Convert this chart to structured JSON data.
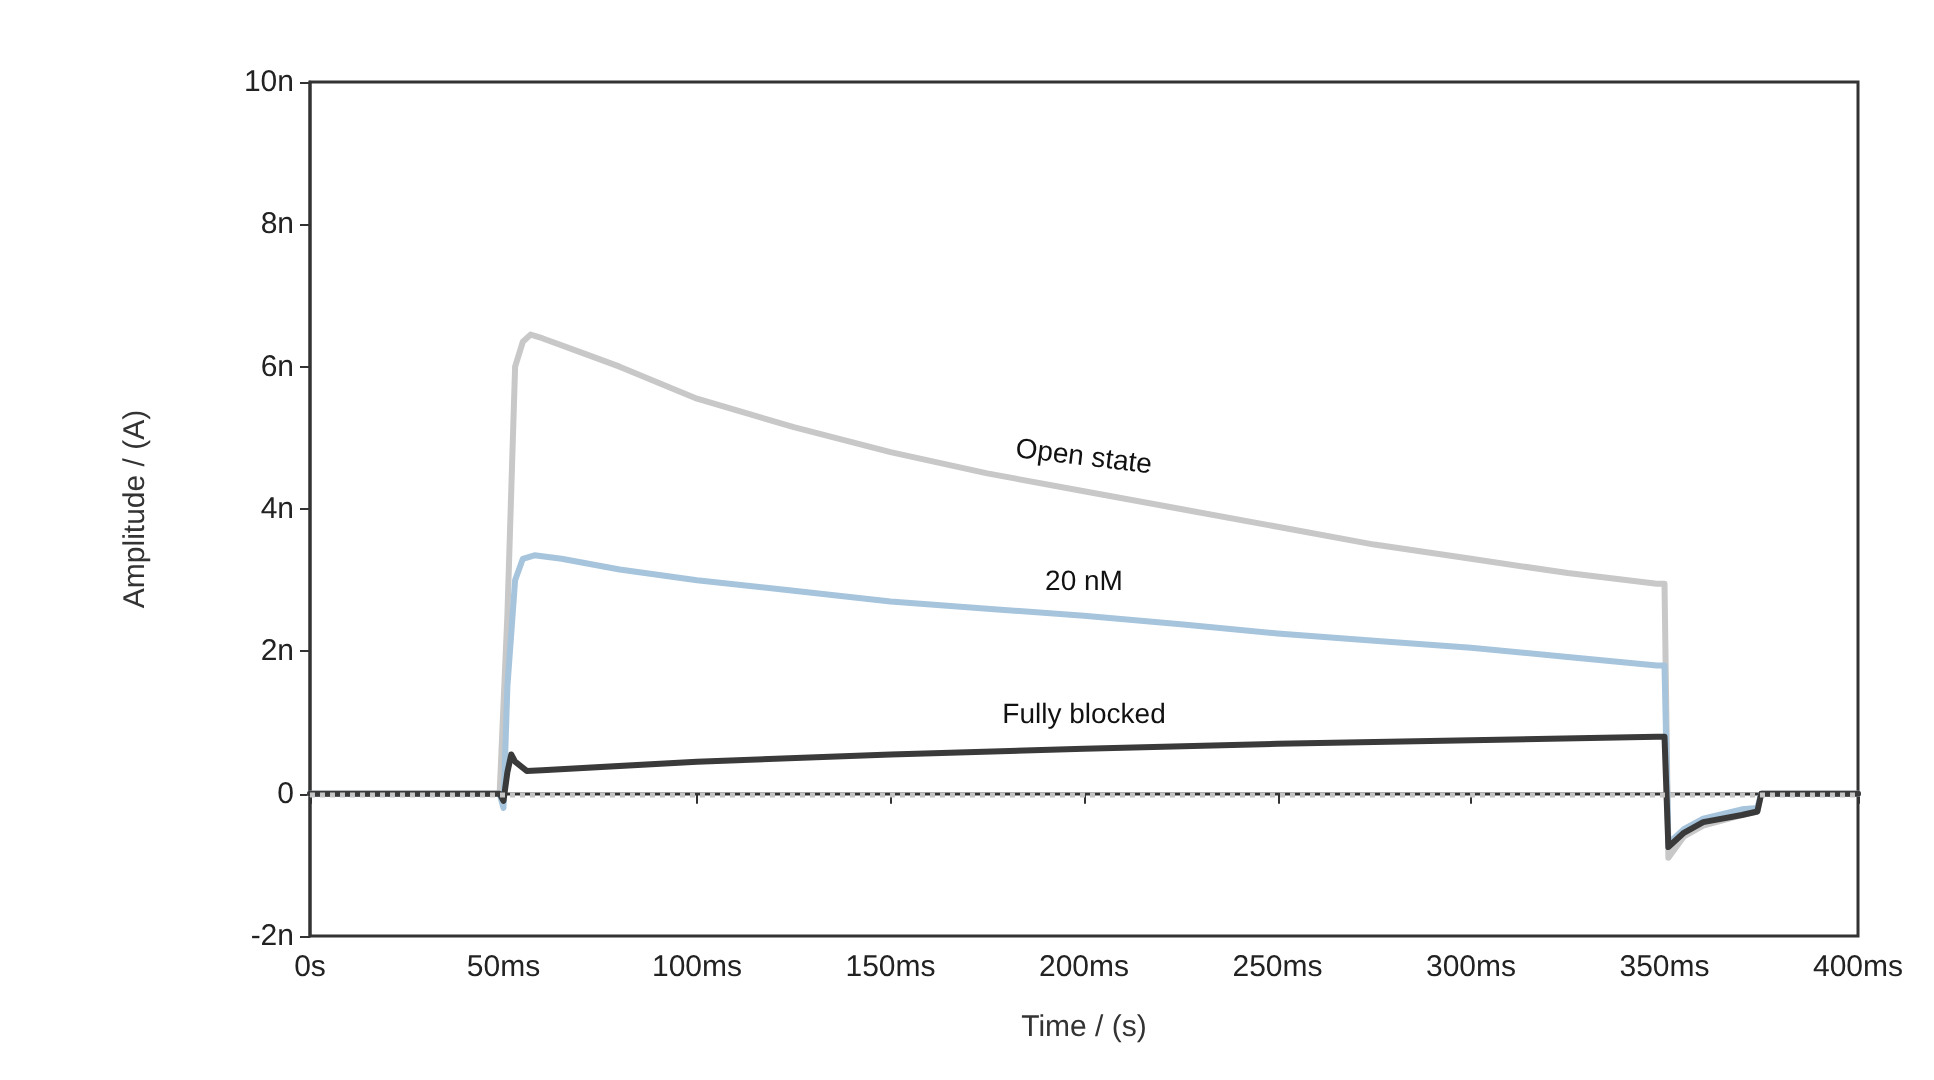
{
  "chart_data": {
    "type": "line",
    "xlabel": "Time / (s)",
    "ylabel": "Amplitude / (A)",
    "xlim": [
      0,
      400
    ],
    "ylim": [
      -2,
      10
    ],
    "xticks": [
      {
        "value": 0,
        "label": "0s"
      },
      {
        "value": 50,
        "label": "50ms"
      },
      {
        "value": 100,
        "label": "100ms"
      },
      {
        "value": 150,
        "label": "150ms"
      },
      {
        "value": 200,
        "label": "200ms"
      },
      {
        "value": 250,
        "label": "250ms"
      },
      {
        "value": 300,
        "label": "300ms"
      },
      {
        "value": 350,
        "label": "350ms"
      },
      {
        "value": 400,
        "label": "400ms"
      }
    ],
    "yticks": [
      {
        "value": -2,
        "label": "-2n"
      },
      {
        "value": 0,
        "label": "0"
      },
      {
        "value": 2,
        "label": "2n"
      },
      {
        "value": 4,
        "label": "4n"
      },
      {
        "value": 6,
        "label": "6n"
      },
      {
        "value": 8,
        "label": "8n"
      },
      {
        "value": 10,
        "label": "10n"
      }
    ],
    "grid": false,
    "legend": false,
    "marker": "none",
    "line_style": "solid",
    "ref_lines": [
      {
        "axis": "y",
        "value": 0,
        "color": "#c4c4c4",
        "line_style": "dotted"
      }
    ],
    "series": [
      {
        "name": "Open state",
        "color": "#c8c8c8",
        "x": [
          0,
          49,
          51,
          53,
          55,
          57,
          60,
          70,
          80,
          100,
          125,
          150,
          175,
          200,
          225,
          250,
          275,
          300,
          325,
          348,
          350,
          351,
          355,
          360,
          370,
          374,
          375,
          400
        ],
        "values": [
          0,
          0,
          2.5,
          6.0,
          6.35,
          6.45,
          6.4,
          6.2,
          6.0,
          5.55,
          5.15,
          4.8,
          4.5,
          4.25,
          4.0,
          3.75,
          3.5,
          3.3,
          3.1,
          2.95,
          2.95,
          -0.9,
          -0.6,
          -0.45,
          -0.3,
          -0.25,
          0,
          0
        ]
      },
      {
        "name": "20 nM",
        "color": "#a6c4dc",
        "x": [
          0,
          49,
          50,
          51,
          53,
          55,
          58,
          65,
          80,
          100,
          125,
          150,
          175,
          200,
          225,
          250,
          275,
          300,
          325,
          348,
          350,
          351,
          355,
          360,
          370,
          374,
          375,
          400
        ],
        "values": [
          0,
          0,
          -0.2,
          1.5,
          3.0,
          3.3,
          3.35,
          3.3,
          3.15,
          3.0,
          2.85,
          2.7,
          2.6,
          2.5,
          2.38,
          2.25,
          2.15,
          2.05,
          1.92,
          1.8,
          1.8,
          -0.7,
          -0.5,
          -0.35,
          -0.22,
          -0.2,
          0,
          0
        ]
      },
      {
        "name": "Fully blocked",
        "color": "#3a3a3a",
        "x": [
          0,
          49,
          50,
          51,
          52,
          53,
          56,
          60,
          100,
          150,
          200,
          250,
          300,
          348,
          350,
          351,
          355,
          360,
          370,
          374,
          375,
          400
        ],
        "values": [
          0,
          0,
          -0.1,
          0.3,
          0.55,
          0.45,
          0.32,
          0.33,
          0.45,
          0.55,
          0.63,
          0.7,
          0.75,
          0.8,
          0.8,
          -0.75,
          -0.55,
          -0.4,
          -0.3,
          -0.25,
          0,
          0
        ]
      }
    ]
  }
}
